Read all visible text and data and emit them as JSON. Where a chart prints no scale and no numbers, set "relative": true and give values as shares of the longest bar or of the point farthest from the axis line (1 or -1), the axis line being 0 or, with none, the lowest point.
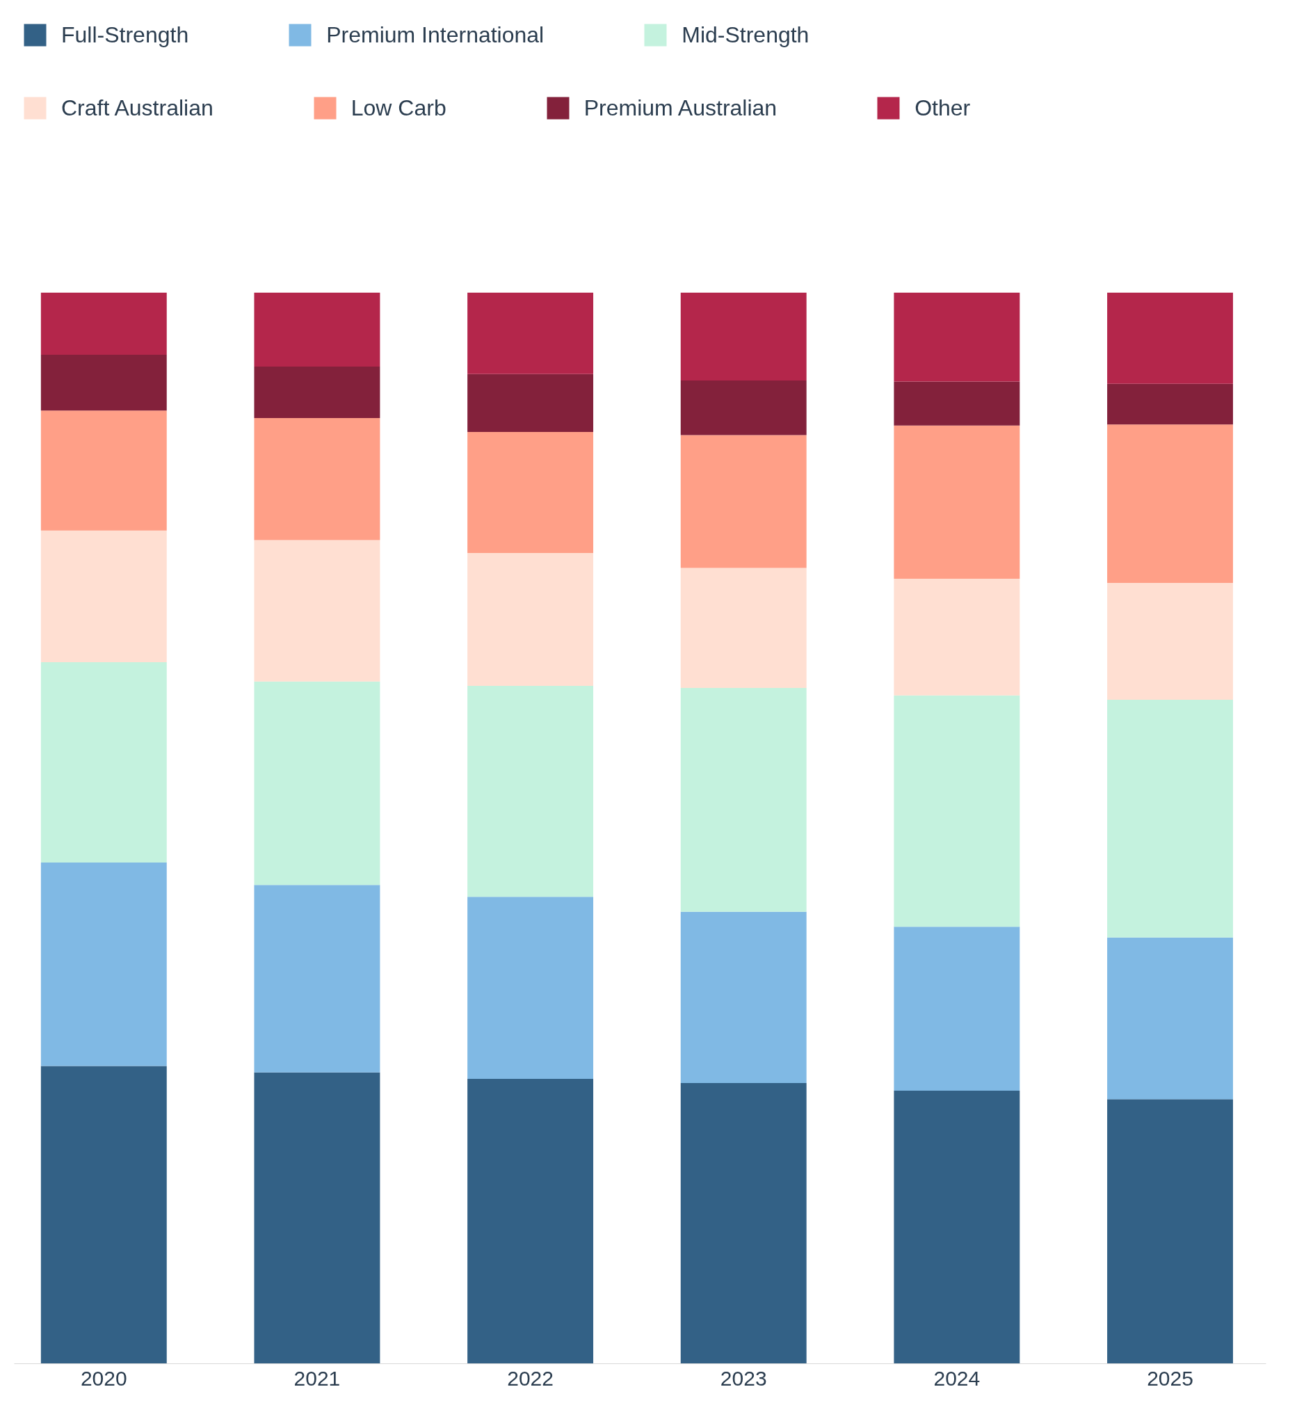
{
  "chart_data": {
    "type": "bar",
    "stacked": true,
    "relative": true,
    "legend": "top",
    "grid": false,
    "categories": [
      "2020",
      "2021",
      "2022",
      "2023",
      "2024",
      "2025"
    ],
    "series": [
      {
        "name": "Full-Strength",
        "color": "#336186",
        "values": [
          0.278,
          0.272,
          0.266,
          0.262,
          0.255,
          0.247
        ]
      },
      {
        "name": "Premium International",
        "color": "#80b9e4",
        "values": [
          0.19,
          0.175,
          0.17,
          0.16,
          0.153,
          0.151
        ]
      },
      {
        "name": "Mid-Strength",
        "color": "#c4f2de",
        "values": [
          0.187,
          0.19,
          0.197,
          0.209,
          0.216,
          0.222
        ]
      },
      {
        "name": "Craft Australian",
        "color": "#ffdfd2",
        "values": [
          0.123,
          0.132,
          0.124,
          0.112,
          0.109,
          0.109
        ]
      },
      {
        "name": "Low Carb",
        "color": "#ff9f87",
        "values": [
          0.112,
          0.114,
          0.113,
          0.124,
          0.143,
          0.148
        ]
      },
      {
        "name": "Premium Australian",
        "color": "#83213b",
        "values": [
          0.052,
          0.048,
          0.054,
          0.051,
          0.041,
          0.038
        ]
      },
      {
        "name": "Other",
        "color": "#b4264b",
        "values": [
          0.058,
          0.069,
          0.076,
          0.082,
          0.083,
          0.085
        ]
      }
    ]
  }
}
